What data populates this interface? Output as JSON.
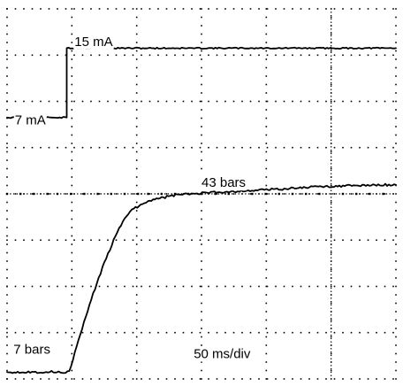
{
  "chart_data": {
    "type": "line",
    "title": "",
    "xlabel": "",
    "ylabel": "",
    "time_scale": "50 ms/div",
    "grid": true,
    "divisions": {
      "x": 6,
      "y": 8
    },
    "x_unit": "ms",
    "xlim": [
      0,
      300
    ],
    "series": [
      {
        "name": "",
        "unit": "mA",
        "color": "#000000",
        "values": [
          {
            "x": 0,
            "y": 7
          },
          {
            "x": 46,
            "y": 7
          },
          {
            "x": 46,
            "y": 15
          },
          {
            "x": 300,
            "y": 15
          }
        ]
      },
      {
        "name": "",
        "unit": "bars",
        "color": "#000000",
        "values": [
          {
            "x": 0,
            "y": 7
          },
          {
            "x": 48,
            "y": 7
          },
          {
            "x": 55,
            "y": 13
          },
          {
            "x": 65,
            "y": 21
          },
          {
            "x": 75,
            "y": 28
          },
          {
            "x": 85,
            "y": 34
          },
          {
            "x": 95,
            "y": 38
          },
          {
            "x": 110,
            "y": 40
          },
          {
            "x": 130,
            "y": 41
          },
          {
            "x": 160,
            "y": 41.5
          },
          {
            "x": 200,
            "y": 42
          },
          {
            "x": 240,
            "y": 42.6
          },
          {
            "x": 300,
            "y": 43
          }
        ]
      }
    ],
    "annotations": [
      {
        "text": "15 mA",
        "x": 52,
        "y_div": 7.2
      },
      {
        "text": "7 mA",
        "x": 6,
        "y_div": 5.5
      },
      {
        "text": "43 bars",
        "x": 150,
        "y_div": 4.15
      },
      {
        "text": "7 bars",
        "x": 5,
        "y_div": 0.55
      },
      {
        "text": "50 ms/div",
        "x": 144,
        "y_div": 0.45
      }
    ],
    "annotation_text": {
      "top_value": "15 mA",
      "top_base": "7 mA",
      "bottom_value": "43 bars",
      "bottom_base": "7 bars",
      "timebase": "50 ms/div"
    },
    "trace_levels_div": {
      "current": {
        "7": 5.65,
        "15": 7.15
      },
      "pressure": {
        "7": 0.15,
        "43": 4.2
      }
    }
  }
}
